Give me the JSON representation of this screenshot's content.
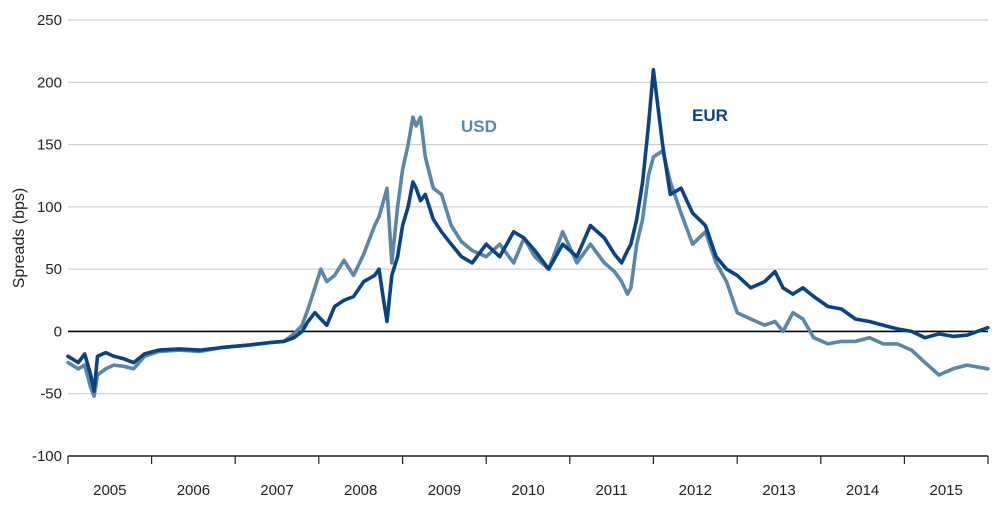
{
  "chart_data": {
    "type": "line",
    "title": "",
    "xlabel": "",
    "ylabel": "Spreads (bps)",
    "ylim": [
      -100,
      250
    ],
    "xlim": [
      "2005-01-01",
      "2016-01-01"
    ],
    "y_ticks": [
      -100,
      -50,
      0,
      50,
      100,
      150,
      200,
      250
    ],
    "y_tick_labels": [
      "-100",
      "-50",
      "0",
      "50",
      "100",
      "150",
      "200",
      "250"
    ],
    "x_tick_labels": [
      "2005",
      "2006",
      "2007",
      "2008",
      "2009",
      "2010",
      "2011",
      "2012",
      "2013",
      "2014",
      "2015"
    ],
    "grid": "horizontal",
    "zero_line": true,
    "series": [
      {
        "name": "USD",
        "color": "#5b86a6",
        "x": [
          "2005-01-01",
          "2005-02-15",
          "2005-03-15",
          "2005-04-10",
          "2005-04-25",
          "2005-05-10",
          "2005-06-15",
          "2005-07-20",
          "2005-09-01",
          "2005-10-15",
          "2005-12-01",
          "2006-02-01",
          "2006-05-01",
          "2006-08-01",
          "2006-11-01",
          "2007-03-01",
          "2007-06-01",
          "2007-08-01",
          "2007-09-15",
          "2007-10-20",
          "2007-11-15",
          "2007-12-15",
          "2008-01-10",
          "2008-02-05",
          "2008-03-10",
          "2008-04-20",
          "2008-06-01",
          "2008-07-15",
          "2008-09-01",
          "2008-09-20",
          "2008-10-10",
          "2008-10-25",
          "2008-11-15",
          "2008-12-10",
          "2009-01-01",
          "2009-01-25",
          "2009-02-15",
          "2009-03-01",
          "2009-03-20",
          "2009-04-10",
          "2009-05-15",
          "2009-06-20",
          "2009-08-01",
          "2009-09-15",
          "2009-11-01",
          "2010-01-01",
          "2010-03-01",
          "2010-05-01",
          "2010-06-15",
          "2010-08-01",
          "2010-10-01",
          "2010-12-01",
          "2011-02-01",
          "2011-04-01",
          "2011-06-01",
          "2011-07-15",
          "2011-08-15",
          "2011-09-10",
          "2011-09-25",
          "2011-10-20",
          "2011-11-15",
          "2011-12-10",
          "2012-01-01",
          "2012-02-10",
          "2012-03-15",
          "2012-05-01",
          "2012-06-20",
          "2012-08-15",
          "2012-10-01",
          "2012-11-15",
          "2013-01-01",
          "2013-03-01",
          "2013-05-01",
          "2013-06-15",
          "2013-07-20",
          "2013-09-01",
          "2013-10-15",
          "2013-12-01",
          "2014-02-01",
          "2014-04-01",
          "2014-06-01",
          "2014-08-01",
          "2014-10-01",
          "2014-12-01",
          "2015-02-01",
          "2015-04-01",
          "2015-06-01",
          "2015-08-01",
          "2015-10-01",
          "2015-12-31"
        ],
        "values": [
          -25,
          -30,
          -27,
          -45,
          -52,
          -35,
          -30,
          -27,
          -28,
          -30,
          -20,
          -16,
          -15,
          -16,
          -13,
          -11,
          -9,
          -8,
          -2,
          5,
          18,
          35,
          50,
          40,
          45,
          57,
          45,
          62,
          85,
          92,
          105,
          115,
          55,
          100,
          130,
          150,
          172,
          165,
          172,
          140,
          115,
          110,
          85,
          72,
          65,
          60,
          70,
          55,
          75,
          60,
          50,
          80,
          55,
          70,
          55,
          48,
          40,
          30,
          35,
          70,
          90,
          125,
          140,
          145,
          120,
          95,
          70,
          80,
          55,
          40,
          15,
          10,
          5,
          8,
          0,
          15,
          10,
          -5,
          -10,
          -8,
          -8,
          -5,
          -10,
          -10,
          -15,
          -25,
          -35,
          -30,
          -27,
          -30
        ]
      },
      {
        "name": "EUR",
        "color": "#0b4382",
        "x": [
          "2005-01-01",
          "2005-02-15",
          "2005-03-15",
          "2005-04-10",
          "2005-04-25",
          "2005-05-10",
          "2005-06-15",
          "2005-07-20",
          "2005-09-01",
          "2005-10-15",
          "2005-12-01",
          "2006-02-01",
          "2006-05-01",
          "2006-08-01",
          "2006-11-01",
          "2007-03-01",
          "2007-06-01",
          "2007-08-01",
          "2007-09-15",
          "2007-10-20",
          "2007-11-15",
          "2007-12-15",
          "2008-01-10",
          "2008-02-05",
          "2008-03-10",
          "2008-04-20",
          "2008-06-01",
          "2008-07-15",
          "2008-09-01",
          "2008-09-20",
          "2008-10-10",
          "2008-10-25",
          "2008-11-15",
          "2008-12-10",
          "2009-01-01",
          "2009-01-25",
          "2009-02-15",
          "2009-03-01",
          "2009-03-20",
          "2009-04-10",
          "2009-05-15",
          "2009-06-20",
          "2009-08-01",
          "2009-09-15",
          "2009-11-01",
          "2010-01-01",
          "2010-03-01",
          "2010-05-01",
          "2010-06-15",
          "2010-08-01",
          "2010-10-01",
          "2010-12-01",
          "2011-02-01",
          "2011-04-01",
          "2011-06-01",
          "2011-07-15",
          "2011-08-15",
          "2011-09-10",
          "2011-09-25",
          "2011-10-20",
          "2011-11-15",
          "2011-12-10",
          "2012-01-01",
          "2012-02-10",
          "2012-03-15",
          "2012-05-01",
          "2012-06-20",
          "2012-08-15",
          "2012-10-01",
          "2012-11-15",
          "2013-01-01",
          "2013-03-01",
          "2013-05-01",
          "2013-06-15",
          "2013-07-20",
          "2013-09-01",
          "2013-10-15",
          "2013-12-01",
          "2014-02-01",
          "2014-04-01",
          "2014-06-01",
          "2014-08-01",
          "2014-10-01",
          "2014-12-01",
          "2015-02-01",
          "2015-04-01",
          "2015-06-01",
          "2015-08-01",
          "2015-10-01",
          "2015-12-31"
        ],
        "values": [
          -20,
          -25,
          -18,
          -35,
          -48,
          -20,
          -17,
          -20,
          -22,
          -25,
          -18,
          -15,
          -14,
          -15,
          -13,
          -11,
          -9,
          -8,
          -5,
          0,
          8,
          15,
          10,
          5,
          20,
          25,
          28,
          40,
          45,
          50,
          25,
          8,
          45,
          60,
          85,
          100,
          120,
          115,
          105,
          110,
          90,
          80,
          70,
          60,
          55,
          70,
          60,
          80,
          75,
          65,
          50,
          70,
          60,
          85,
          75,
          62,
          55,
          65,
          70,
          90,
          120,
          165,
          210,
          150,
          110,
          115,
          95,
          85,
          60,
          50,
          45,
          35,
          40,
          48,
          35,
          30,
          35,
          28,
          20,
          18,
          10,
          8,
          5,
          2,
          0,
          -5,
          -2,
          -4,
          -3,
          3
        ]
      }
    ]
  }
}
